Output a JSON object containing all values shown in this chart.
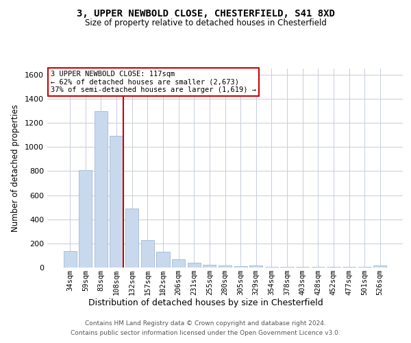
{
  "title_line1": "3, UPPER NEWBOLD CLOSE, CHESTERFIELD, S41 8XD",
  "title_line2": "Size of property relative to detached houses in Chesterfield",
  "xlabel": "Distribution of detached houses by size in Chesterfield",
  "ylabel": "Number of detached properties",
  "categories": [
    "34sqm",
    "59sqm",
    "83sqm",
    "108sqm",
    "132sqm",
    "157sqm",
    "182sqm",
    "206sqm",
    "231sqm",
    "255sqm",
    "280sqm",
    "305sqm",
    "329sqm",
    "354sqm",
    "378sqm",
    "403sqm",
    "428sqm",
    "452sqm",
    "477sqm",
    "501sqm",
    "526sqm"
  ],
  "values": [
    135,
    810,
    1300,
    1090,
    490,
    230,
    130,
    70,
    42,
    25,
    17,
    12,
    17,
    7,
    7,
    7,
    7,
    7,
    7,
    7,
    17
  ],
  "bar_color": "#c8d9ed",
  "bar_edge_color": "#9fb8d4",
  "vline_color": "#cc0000",
  "vline_idx": 3,
  "annotation_line1": "3 UPPER NEWBOLD CLOSE: 117sqm",
  "annotation_line2": "← 62% of detached houses are smaller (2,673)",
  "annotation_line3": "37% of semi-detached houses are larger (1,619) →",
  "annotation_box_color": "#ffffff",
  "annotation_box_edge": "#cc0000",
  "ylim_max": 1650,
  "yticks": [
    0,
    200,
    400,
    600,
    800,
    1000,
    1200,
    1400,
    1600
  ],
  "footer_line1": "Contains HM Land Registry data © Crown copyright and database right 2024.",
  "footer_line2": "Contains public sector information licensed under the Open Government Licence v3.0.",
  "background_color": "#ffffff",
  "grid_color": "#c5ccdb"
}
